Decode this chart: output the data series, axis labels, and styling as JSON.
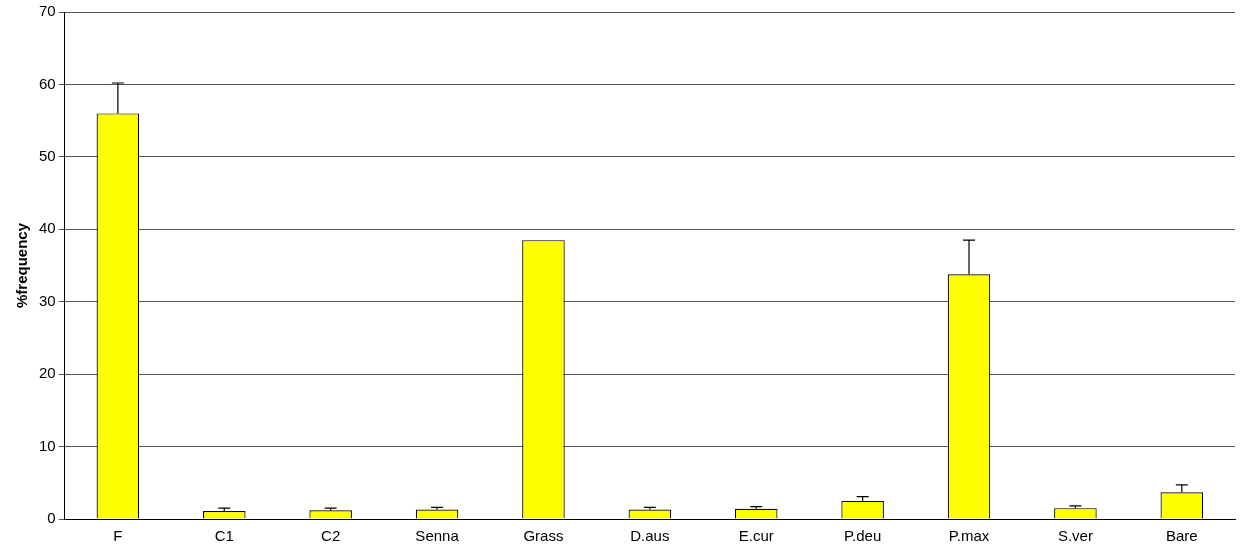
{
  "chart_data": {
    "type": "bar",
    "ylabel": "%frequency",
    "categories": [
      "F",
      "C1",
      "C2",
      "Senna",
      "Grass",
      "D.aus",
      "E.cur",
      "P.deu",
      "P.max",
      "S.ver",
      "Bare"
    ],
    "values": [
      56,
      1.1,
      1.2,
      1.3,
      38.5,
      1.3,
      1.4,
      2.5,
      33.8,
      1.5,
      3.7
    ],
    "errors": [
      4.2,
      0.4,
      0.3,
      0.3,
      null,
      0.3,
      0.3,
      0.6,
      4.7,
      0.3,
      1.0
    ],
    "color": "#ffff00",
    "ylim": [
      0,
      70
    ],
    "yticks": [
      0,
      10,
      20,
      30,
      40,
      50,
      60,
      70
    ],
    "grid": "y",
    "legend": false
  }
}
